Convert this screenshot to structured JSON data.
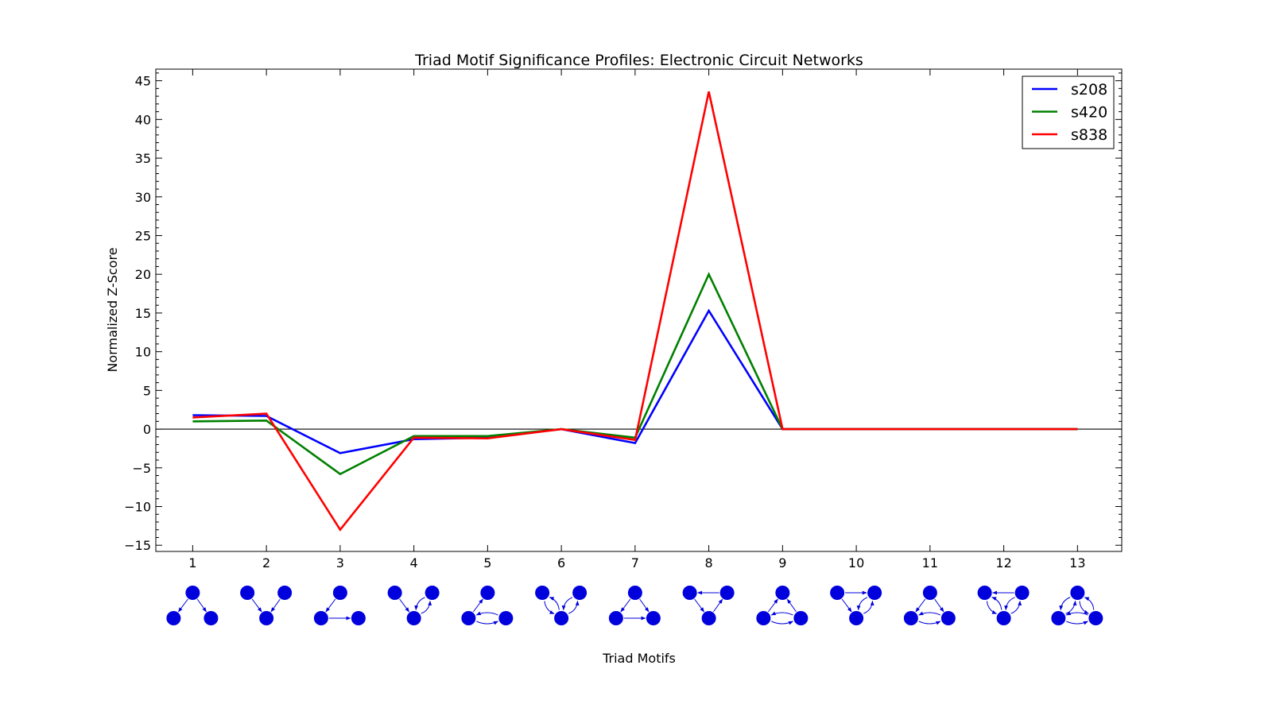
{
  "chart_data": {
    "type": "line",
    "title": "Triad Motif Significance Profiles: Electronic Circuit Networks",
    "xlabel": "Triad Motifs",
    "ylabel": "Normalized Z-Score",
    "x": [
      1,
      2,
      3,
      4,
      5,
      6,
      7,
      8,
      9,
      10,
      11,
      12,
      13
    ],
    "xlim": [
      0.5,
      13.6
    ],
    "ylim": [
      -15.8,
      46.5
    ],
    "yticks": [
      -15,
      -10,
      -5,
      0,
      5,
      10,
      15,
      20,
      25,
      30,
      35,
      40,
      45
    ],
    "ytick_labels": [
      "−15",
      "−10",
      "−5",
      "0",
      "5",
      "10",
      "15",
      "20",
      "25",
      "30",
      "35",
      "40",
      "45"
    ],
    "zero_line": true,
    "grid": false,
    "legend_position": "top-right",
    "series": [
      {
        "name": "s208",
        "color": "#0000ff",
        "values": [
          1.8,
          1.7,
          -3.1,
          -1.3,
          -1.1,
          0.0,
          -1.8,
          15.3,
          0.0,
          0.0,
          0.0,
          0.0,
          0.0
        ]
      },
      {
        "name": "s420",
        "color": "#008000",
        "values": [
          1.0,
          1.1,
          -5.8,
          -0.9,
          -0.9,
          0.0,
          -1.1,
          20.0,
          0.0,
          0.0,
          0.0,
          0.0,
          0.0
        ]
      },
      {
        "name": "s838",
        "color": "#ff0000",
        "values": [
          1.5,
          2.0,
          -13.0,
          -1.1,
          -1.2,
          0.0,
          -1.4,
          43.6,
          0.0,
          0.0,
          0.0,
          0.0,
          0.0
        ]
      }
    ],
    "motif_glyph_color": "#0000dd"
  }
}
